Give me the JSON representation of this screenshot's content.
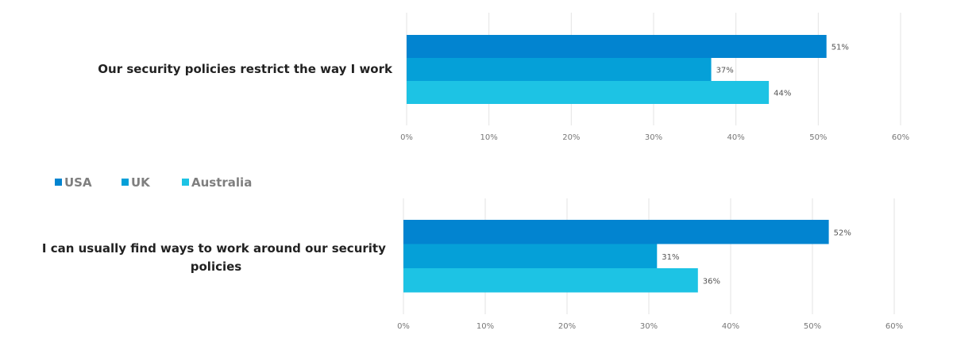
{
  "chart_data": [
    {
      "type": "bar",
      "orientation": "horizontal",
      "categories": [
        "Our security policies restrict the way I work"
      ],
      "series": [
        {
          "name": "USA",
          "values": [
            51
          ]
        },
        {
          "name": "UK",
          "values": [
            37
          ]
        },
        {
          "name": "Australia",
          "values": [
            44
          ]
        }
      ],
      "data_labels": [
        "51%",
        "37%",
        "44%"
      ],
      "xlim": [
        0,
        60
      ],
      "x_ticks": [
        "0%",
        "10%",
        "20%",
        "30%",
        "40%",
        "50%",
        "60%"
      ],
      "grid": true
    },
    {
      "type": "bar",
      "orientation": "horizontal",
      "categories": [
        "I can usually find ways to work around our security policies"
      ],
      "category_label_lines": [
        "I can usually find ways to work around our security",
        "policies"
      ],
      "series": [
        {
          "name": "USA",
          "values": [
            52
          ]
        },
        {
          "name": "UK",
          "values": [
            31
          ]
        },
        {
          "name": "Australia",
          "values": [
            36
          ]
        }
      ],
      "data_labels": [
        "52%",
        "31%",
        "36%"
      ],
      "xlim": [
        0,
        60
      ],
      "x_ticks": [
        "0%",
        "10%",
        "20%",
        "30%",
        "40%",
        "50%",
        "60%"
      ],
      "grid": true
    }
  ],
  "legend": {
    "placement": "middle-left",
    "items": [
      {
        "label": "USA",
        "color": "#0284d0"
      },
      {
        "label": "UK",
        "color": "#05a0d8"
      },
      {
        "label": "Australia",
        "color": "#1dc3e4"
      }
    ]
  },
  "colors": {
    "usa": "#0284d0",
    "uk": "#05a0d8",
    "australia": "#1dc3e4",
    "grid": "#e3e3e3"
  }
}
